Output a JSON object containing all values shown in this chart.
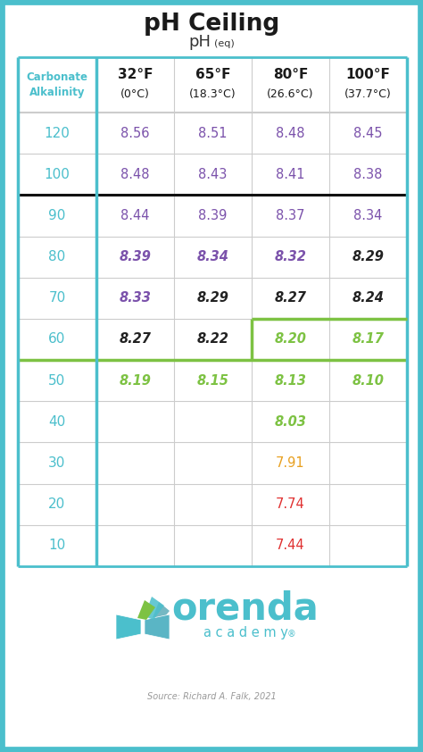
{
  "title": "pH Ceiling",
  "subtitle": "pH",
  "subtitle_eq": "(eq)",
  "border_color": "#4BBFCC",
  "col_header": [
    "32°F\n(0°C)",
    "65°F\n(18.3°C)",
    "80°F\n(26.6°C)",
    "100°F\n(37.7°C)"
  ],
  "row_labels": [
    120,
    100,
    90,
    80,
    70,
    60,
    50,
    40,
    30,
    20,
    10
  ],
  "table_data": [
    [
      "8.56",
      "8.51",
      "8.48",
      "8.45"
    ],
    [
      "8.48",
      "8.43",
      "8.41",
      "8.38"
    ],
    [
      "8.44",
      "8.39",
      "8.37",
      "8.34"
    ],
    [
      "8.39",
      "8.34",
      "8.32",
      "8.29"
    ],
    [
      "8.33",
      "8.29",
      "8.27",
      "8.24"
    ],
    [
      "8.27",
      "8.22",
      "8.20",
      "8.17"
    ],
    [
      "8.19",
      "8.15",
      "8.13",
      "8.10"
    ],
    [
      "",
      "",
      "8.03",
      ""
    ],
    [
      "",
      "",
      "7.91",
      ""
    ],
    [
      "",
      "",
      "7.74",
      ""
    ],
    [
      "",
      "",
      "7.44",
      ""
    ]
  ],
  "cell_colors": [
    [
      "#7B52AB",
      "#7B52AB",
      "#7B52AB",
      "#7B52AB"
    ],
    [
      "#7B52AB",
      "#7B52AB",
      "#7B52AB",
      "#7B52AB"
    ],
    [
      "#7B52AB",
      "#7B52AB",
      "#7B52AB",
      "#7B52AB"
    ],
    [
      "#7B52AB",
      "#7B52AB",
      "#7B52AB",
      "#222222"
    ],
    [
      "#7B52AB",
      "#222222",
      "#222222",
      "#222222"
    ],
    [
      "#222222",
      "#222222",
      "#7DC243",
      "#7DC243"
    ],
    [
      "#7DC243",
      "#7DC243",
      "#7DC243",
      "#7DC243"
    ],
    [
      "",
      "",
      "#7DC243",
      ""
    ],
    [
      "",
      "",
      "#E8A020",
      ""
    ],
    [
      "",
      "",
      "#E03030",
      ""
    ],
    [
      "",
      "",
      "#E03030",
      ""
    ]
  ],
  "cell_bold": [
    [
      false,
      false,
      false,
      false
    ],
    [
      false,
      false,
      false,
      false
    ],
    [
      false,
      false,
      false,
      false
    ],
    [
      true,
      true,
      true,
      true
    ],
    [
      true,
      true,
      true,
      true
    ],
    [
      true,
      true,
      true,
      true
    ],
    [
      true,
      true,
      true,
      true
    ],
    [
      false,
      false,
      true,
      false
    ],
    [
      false,
      false,
      false,
      false
    ],
    [
      false,
      false,
      false,
      false
    ],
    [
      false,
      false,
      false,
      false
    ]
  ],
  "source_text": "Source: Richard A. Falk, 2021",
  "bg_color": "#ffffff",
  "outer_border": "#4BBFCC"
}
